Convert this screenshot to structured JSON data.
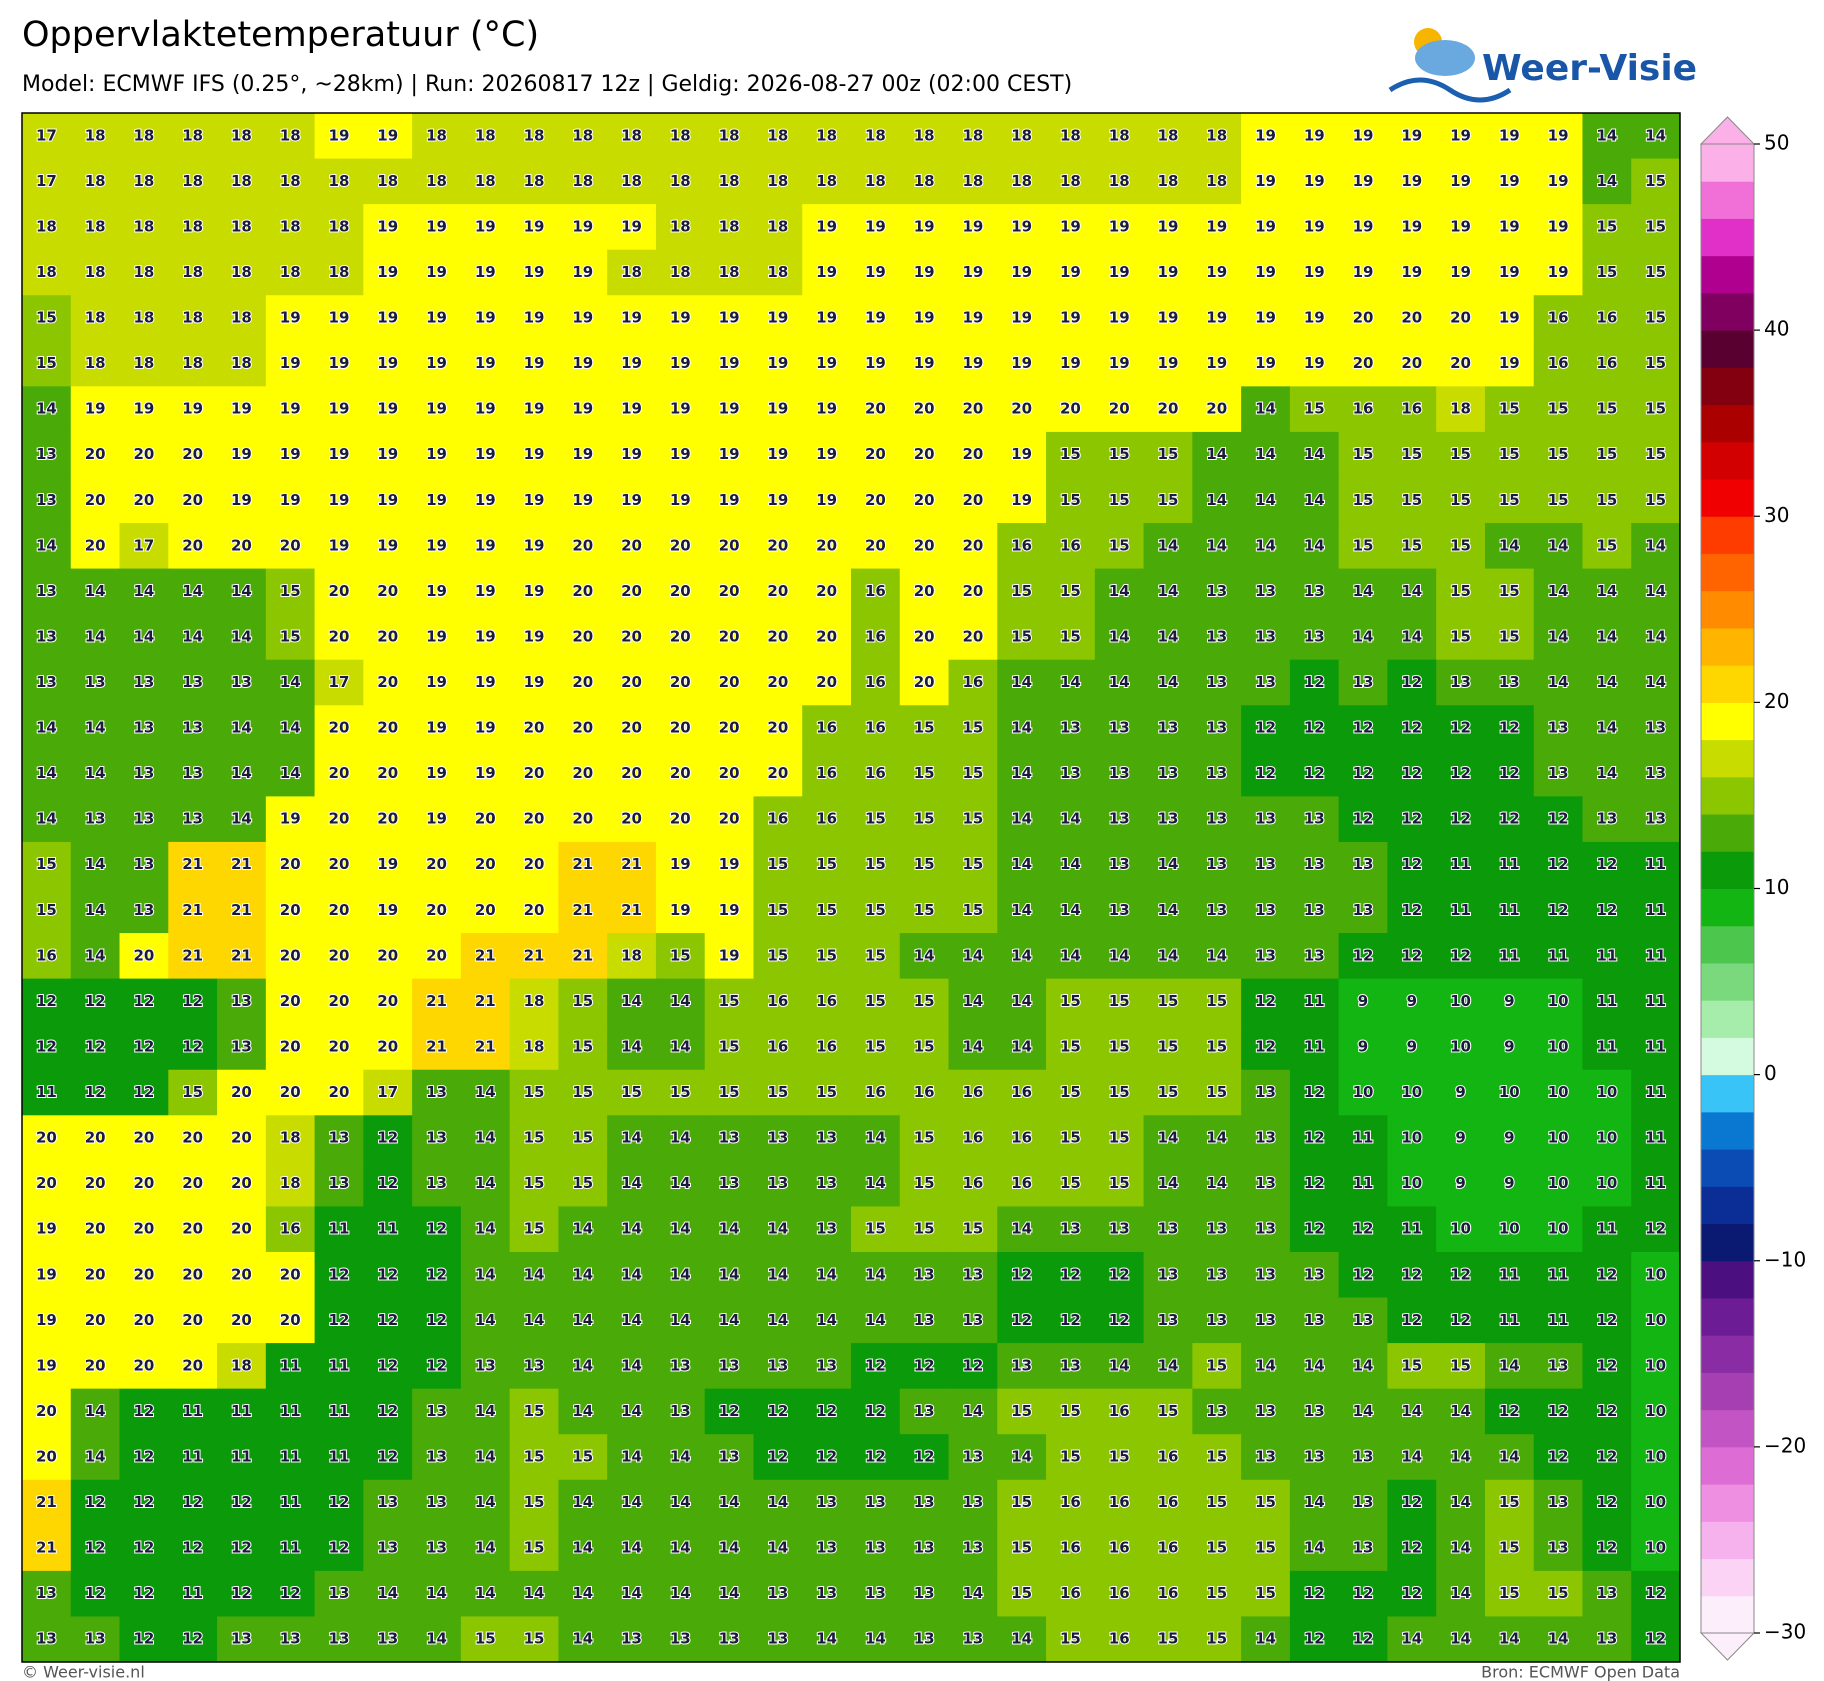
{
  "header": {
    "title": "Oppervlaktetemperatuur (°C)",
    "subtitle": "Model: ECMWF IFS (0.25°, ~28km)  |  Run: 20260817 12z  |  Geldig: 2026-08-27 00z (02:00 CEST)"
  },
  "logo": "Weer-Visie",
  "grid": {
    "rows": [
      [
        17,
        18,
        18,
        18,
        18,
        18,
        19,
        19,
        18,
        18,
        18,
        18,
        18,
        18,
        18,
        18,
        18,
        18,
        18,
        18,
        18,
        18,
        18,
        18,
        18,
        19,
        19,
        19,
        19,
        19,
        19,
        19,
        14,
        14
      ],
      [
        17,
        18,
        18,
        18,
        18,
        18,
        18,
        18,
        18,
        18,
        18,
        18,
        18,
        18,
        18,
        18,
        18,
        18,
        18,
        18,
        18,
        18,
        18,
        18,
        18,
        19,
        19,
        19,
        19,
        19,
        19,
        19,
        14,
        15
      ],
      [
        18,
        18,
        18,
        18,
        18,
        18,
        18,
        19,
        19,
        19,
        19,
        19,
        19,
        18,
        18,
        18,
        19,
        19,
        19,
        19,
        19,
        19,
        19,
        19,
        19,
        19,
        19,
        19,
        19,
        19,
        19,
        19,
        15,
        15
      ],
      [
        18,
        18,
        18,
        18,
        18,
        18,
        18,
        19,
        19,
        19,
        19,
        19,
        18,
        18,
        18,
        18,
        19,
        19,
        19,
        19,
        19,
        19,
        19,
        19,
        19,
        19,
        19,
        19,
        19,
        19,
        19,
        19,
        15,
        15
      ],
      [
        15,
        18,
        18,
        18,
        18,
        19,
        19,
        19,
        19,
        19,
        19,
        19,
        19,
        19,
        19,
        19,
        19,
        19,
        19,
        19,
        19,
        19,
        19,
        19,
        19,
        19,
        19,
        20,
        20,
        20,
        19,
        16,
        16,
        15
      ],
      [
        15,
        18,
        18,
        18,
        18,
        19,
        19,
        19,
        19,
        19,
        19,
        19,
        19,
        19,
        19,
        19,
        19,
        19,
        19,
        19,
        19,
        19,
        19,
        19,
        19,
        19,
        19,
        20,
        20,
        20,
        19,
        16,
        16,
        15
      ],
      [
        14,
        19,
        19,
        19,
        19,
        19,
        19,
        19,
        19,
        19,
        19,
        19,
        19,
        19,
        19,
        19,
        19,
        20,
        20,
        20,
        20,
        20,
        20,
        20,
        20,
        14,
        15,
        16,
        16,
        18,
        15,
        15,
        15,
        15
      ],
      [
        13,
        20,
        20,
        20,
        19,
        19,
        19,
        19,
        19,
        19,
        19,
        19,
        19,
        19,
        19,
        19,
        19,
        20,
        20,
        20,
        19,
        15,
        15,
        15,
        14,
        14,
        14,
        15,
        15,
        15,
        15,
        15,
        15,
        15
      ],
      [
        13,
        20,
        20,
        20,
        19,
        19,
        19,
        19,
        19,
        19,
        19,
        19,
        19,
        19,
        19,
        19,
        19,
        20,
        20,
        20,
        19,
        15,
        15,
        15,
        14,
        14,
        14,
        15,
        15,
        15,
        15,
        15,
        15,
        15
      ],
      [
        14,
        20,
        17,
        20,
        20,
        20,
        19,
        19,
        19,
        19,
        19,
        20,
        20,
        20,
        20,
        20,
        20,
        20,
        20,
        20,
        16,
        16,
        15,
        14,
        14,
        14,
        14,
        15,
        15,
        15,
        14,
        14,
        15,
        14
      ],
      [
        13,
        14,
        14,
        14,
        14,
        15,
        20,
        20,
        19,
        19,
        19,
        20,
        20,
        20,
        20,
        20,
        20,
        16,
        20,
        20,
        15,
        15,
        14,
        14,
        13,
        13,
        13,
        14,
        14,
        15,
        15,
        14,
        14,
        14
      ],
      [
        13,
        14,
        14,
        14,
        14,
        15,
        20,
        20,
        19,
        19,
        19,
        20,
        20,
        20,
        20,
        20,
        20,
        16,
        20,
        20,
        15,
        15,
        14,
        14,
        13,
        13,
        13,
        14,
        14,
        15,
        15,
        14,
        14,
        14
      ],
      [
        13,
        13,
        13,
        13,
        13,
        14,
        17,
        20,
        19,
        19,
        19,
        20,
        20,
        20,
        20,
        20,
        20,
        16,
        20,
        16,
        14,
        14,
        14,
        14,
        13,
        13,
        12,
        13,
        12,
        13,
        13,
        14,
        14,
        14
      ],
      [
        14,
        14,
        13,
        13,
        14,
        14,
        20,
        20,
        19,
        19,
        20,
        20,
        20,
        20,
        20,
        20,
        16,
        16,
        15,
        15,
        14,
        13,
        13,
        13,
        13,
        12,
        12,
        12,
        12,
        12,
        12,
        13,
        14,
        13
      ],
      [
        14,
        14,
        13,
        13,
        14,
        14,
        20,
        20,
        19,
        19,
        20,
        20,
        20,
        20,
        20,
        20,
        16,
        16,
        15,
        15,
        14,
        13,
        13,
        13,
        13,
        12,
        12,
        12,
        12,
        12,
        12,
        13,
        14,
        13
      ],
      [
        14,
        13,
        13,
        13,
        14,
        19,
        20,
        20,
        19,
        20,
        20,
        20,
        20,
        20,
        20,
        16,
        16,
        15,
        15,
        15,
        14,
        14,
        13,
        13,
        13,
        13,
        13,
        12,
        12,
        12,
        12,
        12,
        13,
        13
      ],
      [
        15,
        14,
        13,
        21,
        21,
        20,
        20,
        19,
        20,
        20,
        20,
        21,
        21,
        19,
        19,
        15,
        15,
        15,
        15,
        15,
        14,
        14,
        13,
        14,
        13,
        13,
        13,
        13,
        12,
        11,
        11,
        12,
        12,
        11
      ],
      [
        15,
        14,
        13,
        21,
        21,
        20,
        20,
        19,
        20,
        20,
        20,
        21,
        21,
        19,
        19,
        15,
        15,
        15,
        15,
        15,
        14,
        14,
        13,
        14,
        13,
        13,
        13,
        13,
        12,
        11,
        11,
        12,
        12,
        11
      ],
      [
        16,
        14,
        20,
        21,
        21,
        20,
        20,
        20,
        20,
        21,
        21,
        21,
        18,
        15,
        19,
        15,
        15,
        15,
        14,
        14,
        14,
        14,
        14,
        14,
        14,
        13,
        13,
        12,
        12,
        12,
        11,
        11,
        11,
        11
      ],
      [
        12,
        12,
        12,
        12,
        13,
        20,
        20,
        20,
        21,
        21,
        18,
        15,
        14,
        14,
        15,
        16,
        16,
        15,
        15,
        14,
        14,
        15,
        15,
        15,
        15,
        12,
        11,
        9,
        9,
        10,
        9,
        10,
        11,
        11
      ],
      [
        12,
        12,
        12,
        12,
        13,
        20,
        20,
        20,
        21,
        21,
        18,
        15,
        14,
        14,
        15,
        16,
        16,
        15,
        15,
        14,
        14,
        15,
        15,
        15,
        15,
        12,
        11,
        9,
        9,
        10,
        9,
        10,
        11,
        11
      ],
      [
        11,
        12,
        12,
        15,
        20,
        20,
        20,
        17,
        13,
        14,
        15,
        15,
        15,
        15,
        15,
        15,
        15,
        16,
        16,
        16,
        16,
        15,
        15,
        15,
        15,
        13,
        12,
        10,
        10,
        9,
        10,
        10,
        10,
        11
      ],
      [
        20,
        20,
        20,
        20,
        20,
        18,
        13,
        12,
        13,
        14,
        15,
        15,
        14,
        14,
        13,
        13,
        13,
        14,
        15,
        16,
        16,
        15,
        15,
        14,
        14,
        13,
        12,
        11,
        10,
        9,
        9,
        10,
        10,
        11
      ],
      [
        20,
        20,
        20,
        20,
        20,
        18,
        13,
        12,
        13,
        14,
        15,
        15,
        14,
        14,
        13,
        13,
        13,
        14,
        15,
        16,
        16,
        15,
        15,
        14,
        14,
        13,
        12,
        11,
        10,
        9,
        9,
        10,
        10,
        11
      ],
      [
        19,
        20,
        20,
        20,
        20,
        16,
        11,
        11,
        12,
        14,
        15,
        14,
        14,
        14,
        14,
        14,
        13,
        15,
        15,
        15,
        14,
        13,
        13,
        13,
        13,
        13,
        12,
        12,
        11,
        10,
        10,
        10,
        11,
        12
      ],
      [
        19,
        20,
        20,
        20,
        20,
        20,
        12,
        12,
        12,
        14,
        14,
        14,
        14,
        14,
        14,
        14,
        14,
        14,
        13,
        13,
        12,
        12,
        12,
        13,
        13,
        13,
        13,
        12,
        12,
        12,
        11,
        11,
        12,
        10
      ],
      [
        19,
        20,
        20,
        20,
        20,
        20,
        12,
        12,
        12,
        14,
        14,
        14,
        14,
        14,
        14,
        14,
        14,
        14,
        13,
        13,
        12,
        12,
        12,
        13,
        13,
        13,
        13,
        13,
        12,
        12,
        11,
        11,
        12,
        10
      ],
      [
        19,
        20,
        20,
        20,
        18,
        11,
        11,
        12,
        12,
        13,
        13,
        14,
        14,
        13,
        13,
        13,
        13,
        12,
        12,
        12,
        13,
        13,
        14,
        14,
        15,
        14,
        14,
        14,
        15,
        15,
        14,
        13,
        12,
        10
      ],
      [
        20,
        14,
        12,
        11,
        11,
        11,
        11,
        12,
        13,
        14,
        15,
        14,
        14,
        13,
        12,
        12,
        12,
        12,
        13,
        14,
        15,
        15,
        16,
        15,
        13,
        13,
        13,
        14,
        14,
        14,
        12,
        12,
        12,
        10
      ],
      [
        20,
        14,
        12,
        11,
        11,
        11,
        11,
        12,
        13,
        14,
        15,
        15,
        14,
        14,
        13,
        12,
        12,
        12,
        12,
        13,
        14,
        15,
        15,
        16,
        15,
        13,
        13,
        13,
        14,
        14,
        14,
        12,
        12,
        10
      ],
      [
        21,
        12,
        12,
        12,
        12,
        11,
        12,
        13,
        13,
        14,
        15,
        14,
        14,
        14,
        14,
        14,
        13,
        13,
        13,
        13,
        15,
        16,
        16,
        16,
        15,
        15,
        14,
        13,
        12,
        14,
        15,
        13,
        12,
        10
      ],
      [
        21,
        12,
        12,
        12,
        12,
        11,
        12,
        13,
        13,
        14,
        15,
        14,
        14,
        14,
        14,
        14,
        13,
        13,
        13,
        13,
        15,
        16,
        16,
        16,
        15,
        15,
        14,
        13,
        12,
        14,
        15,
        13,
        12,
        10
      ],
      [
        13,
        12,
        12,
        11,
        12,
        12,
        13,
        14,
        14,
        14,
        14,
        14,
        14,
        14,
        14,
        13,
        13,
        13,
        13,
        14,
        15,
        16,
        16,
        16,
        15,
        15,
        12,
        12,
        12,
        14,
        15,
        15,
        13,
        12
      ],
      [
        13,
        13,
        12,
        12,
        13,
        13,
        13,
        13,
        14,
        15,
        15,
        14,
        13,
        13,
        13,
        13,
        14,
        14,
        13,
        13,
        14,
        15,
        16,
        15,
        15,
        14,
        12,
        12,
        14,
        14,
        14,
        14,
        13,
        12
      ]
    ]
  },
  "colorbar": {
    "lim": [
      -30,
      50
    ],
    "ticks": [
      {
        "value": -30,
        "label": "−30"
      },
      {
        "value": -20,
        "label": "−20"
      },
      {
        "value": -10,
        "label": "−10"
      },
      0,
      10,
      20,
      30,
      40,
      50
    ],
    "colors": [
      "#fdeefb",
      "#fbd3f4",
      "#f6b2ec",
      "#ee8fe2",
      "#dd6dd4",
      "#c354c3",
      "#a53fb2",
      "#8a2da4",
      "#6c1c95",
      "#4b0f80",
      "#0a1a72",
      "#0a2e96",
      "#0a4cb4",
      "#0a78d0",
      "#38c4f6",
      "#d4fbe0",
      "#a6ecaa",
      "#7ad97c",
      "#4cc64c",
      "#12b512",
      "#0a9a0a",
      "#4aaa08",
      "#8cc600",
      "#c8dc00",
      "#ffff00",
      "#ffd700",
      "#ffb400",
      "#ff8c00",
      "#ff6400",
      "#ff3c00",
      "#f00000",
      "#d20000",
      "#aa0000",
      "#820010",
      "#5a0030",
      "#800060",
      "#b00090",
      "#e030c8",
      "#f070d8",
      "#fbb0e8"
    ]
  },
  "footer": {
    "left": "© Weer-visie.nl",
    "right": "Bron: ECMWF Open Data"
  }
}
